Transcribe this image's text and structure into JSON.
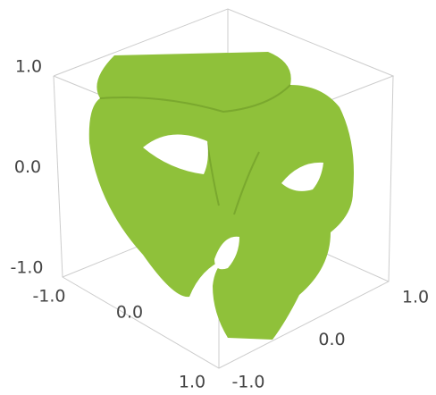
{
  "chart_data": {
    "type": "implicit3d",
    "xlim": [
      -1,
      1
    ],
    "ylim": [
      -1,
      1
    ],
    "zlim": [
      -1,
      1
    ],
    "xticks": [
      {
        "value": -1,
        "label": "-1.0"
      },
      {
        "value": 0,
        "label": "0.0"
      },
      {
        "value": 1,
        "label": "1.0"
      }
    ],
    "yticks": [
      {
        "value": -1,
        "label": "-1.0"
      },
      {
        "value": 0,
        "label": "0.0"
      },
      {
        "value": 1,
        "label": "1.0"
      }
    ],
    "zticks": [
      {
        "value": -1,
        "label": "-1.0"
      },
      {
        "value": 0,
        "label": "0.0"
      },
      {
        "value": 1,
        "label": "1.0"
      }
    ],
    "color": "#8fc13a"
  }
}
